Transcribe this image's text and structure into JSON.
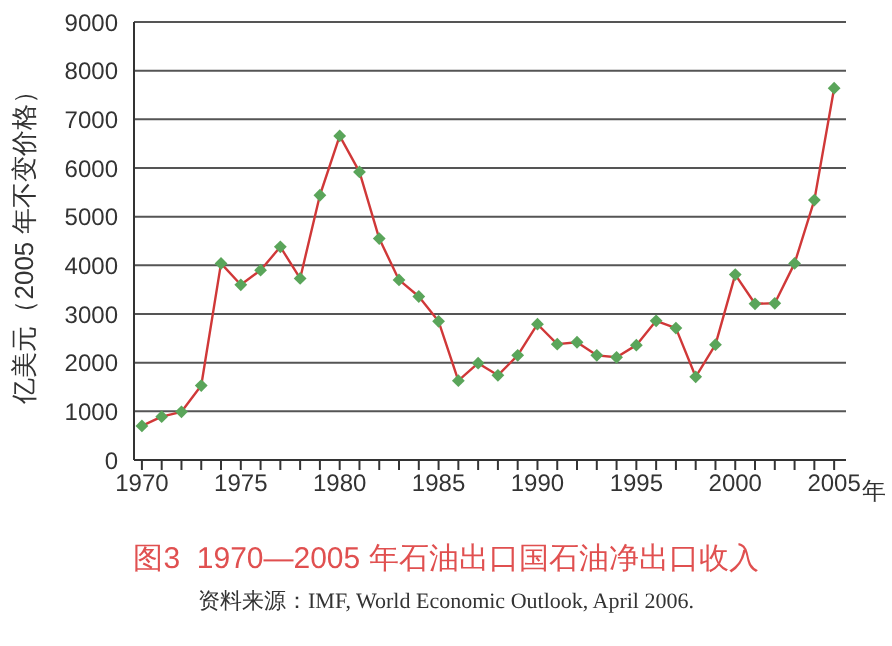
{
  "chart_data": {
    "type": "line",
    "title": "图3  1970—2005 年石油出口国石油净出口收入",
    "ylabel": "亿美元（2005 年不变价格）",
    "xlabel": "年",
    "annotations": [
      "资料来源：IMF, World Economic Outlook, April 2006."
    ],
    "x": [
      1970,
      1971,
      1972,
      1973,
      1974,
      1975,
      1976,
      1977,
      1978,
      1979,
      1980,
      1981,
      1982,
      1983,
      1984,
      1985,
      1986,
      1987,
      1988,
      1989,
      1990,
      1991,
      1992,
      1993,
      1994,
      1995,
      1996,
      1997,
      1998,
      1999,
      2000,
      2001,
      2002,
      2003,
      2004,
      2005
    ],
    "series": [
      {
        "color": "#d03838",
        "values": [
          700,
          890,
          990,
          1530,
          4040,
          3600,
          3900,
          4380,
          3730,
          5440,
          6660,
          5920,
          4550,
          3700,
          3360,
          2850,
          1630,
          1990,
          1740,
          2150,
          2790,
          2380,
          2420,
          2150,
          2110,
          2360,
          2860,
          2710,
          1710,
          2370,
          3810,
          3210,
          3220,
          4040,
          5340,
          7640
        ]
      }
    ],
    "xlim": [
      1969.6,
      2005.6
    ],
    "xticks": [
      1970,
      {
        "value": 1971,
        "label": null
      },
      {
        "value": 1972,
        "label": null
      },
      {
        "value": 1973,
        "label": null
      },
      {
        "value": 1974,
        "label": null
      },
      1975,
      {
        "value": 1976,
        "label": null
      },
      {
        "value": 1977,
        "label": null
      },
      {
        "value": 1978,
        "label": null
      },
      {
        "value": 1979,
        "label": null
      },
      1980,
      {
        "value": 1981,
        "label": null
      },
      {
        "value": 1982,
        "label": null
      },
      {
        "value": 1983,
        "label": null
      },
      {
        "value": 1984,
        "label": null
      },
      1985,
      {
        "value": 1986,
        "label": null
      },
      {
        "value": 1987,
        "label": null
      },
      {
        "value": 1988,
        "label": null
      },
      {
        "value": 1989,
        "label": null
      },
      1990,
      {
        "value": 1991,
        "label": null
      },
      {
        "value": 1992,
        "label": null
      },
      {
        "value": 1993,
        "label": null
      },
      {
        "value": 1994,
        "label": null
      },
      1995,
      {
        "value": 1996,
        "label": null
      },
      {
        "value": 1997,
        "label": null
      },
      {
        "value": 1998,
        "label": null
      },
      {
        "value": 1999,
        "label": null
      },
      2000,
      {
        "value": 2001,
        "label": null
      },
      {
        "value": 2002,
        "label": null
      },
      {
        "value": 2003,
        "label": null
      },
      {
        "value": 2004,
        "label": null
      },
      2005
    ],
    "ylim": [
      0,
      9000
    ],
    "yticks": [
      0,
      1000,
      2000,
      3000,
      4000,
      5000,
      6000,
      7000,
      8000,
      9000
    ],
    "grid": "y",
    "marker": "diamond",
    "line_style": "solid",
    "legend": false
  }
}
